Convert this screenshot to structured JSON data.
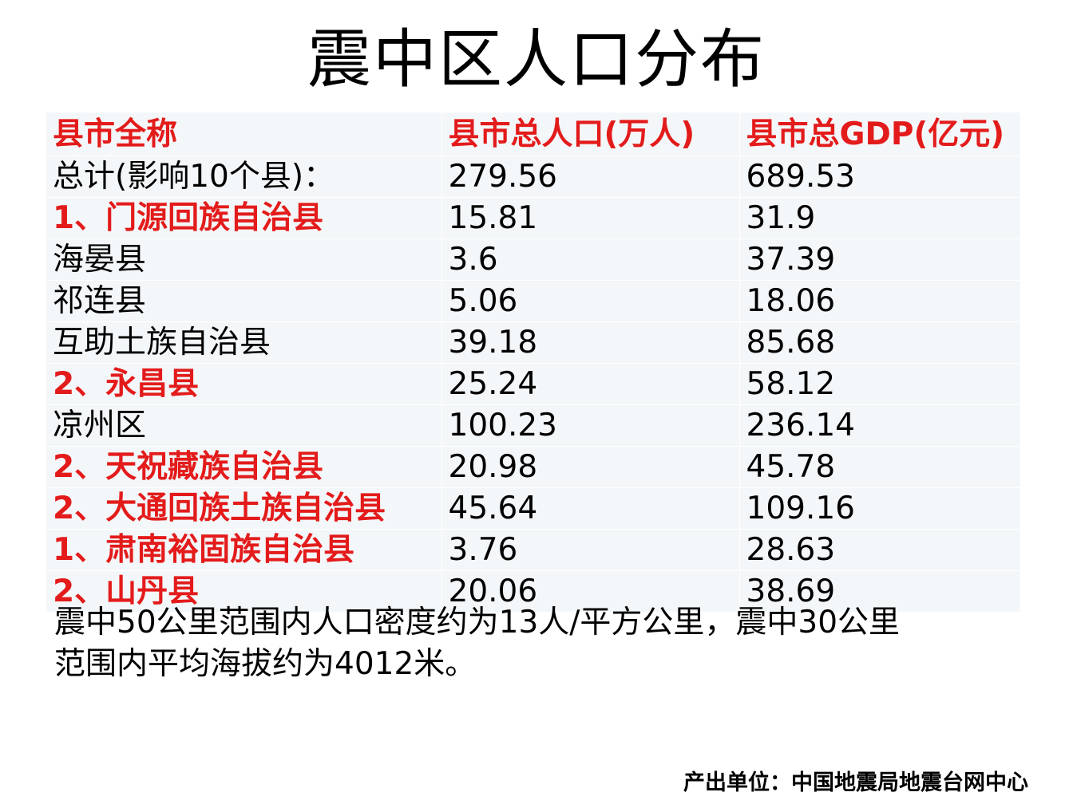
{
  "title": "震中区人口分布",
  "table": {
    "headers": [
      "县市全称",
      "县市总人口(万人)",
      "县市总GDP(亿元)"
    ],
    "rows": [
      {
        "name": "总计(影响10个县)：",
        "population": "279.56",
        "gdp": "689.53",
        "highlight": false
      },
      {
        "name": "1、门源回族自治县",
        "population": "15.81",
        "gdp": "31.9",
        "highlight": true
      },
      {
        "name": "海晏县",
        "population": "3.6",
        "gdp": "37.39",
        "highlight": false
      },
      {
        "name": "祁连县",
        "population": "5.06",
        "gdp": "18.06",
        "highlight": false
      },
      {
        "name": "互助土族自治县",
        "population": "39.18",
        "gdp": "85.68",
        "highlight": false
      },
      {
        "name": "2、永昌县",
        "population": "25.24",
        "gdp": "58.12",
        "highlight": true
      },
      {
        "name": "凉州区",
        "population": "100.23",
        "gdp": "236.14",
        "highlight": false
      },
      {
        "name": "2、天祝藏族自治县",
        "population": "20.98",
        "gdp": "45.78",
        "highlight": true
      },
      {
        "name": "2、大通回族土族自治县",
        "population": "45.64",
        "gdp": "109.16",
        "highlight": true
      },
      {
        "name": "1、肃南裕固族自治县",
        "population": "3.76",
        "gdp": "28.63",
        "highlight": true
      },
      {
        "name": "2、山丹县",
        "population": "20.06",
        "gdp": "38.69",
        "highlight": true
      }
    ]
  },
  "note_lines": [
    "震中50公里范围内人口密度约为13人/平方公里，震中30公里",
    "范围内平均海拔约为4012米。"
  ],
  "source": "产出单位：中国地震局地震台网中心",
  "colors": {
    "highlight": "#e31b1b",
    "table_background": "#f4f7f9"
  }
}
